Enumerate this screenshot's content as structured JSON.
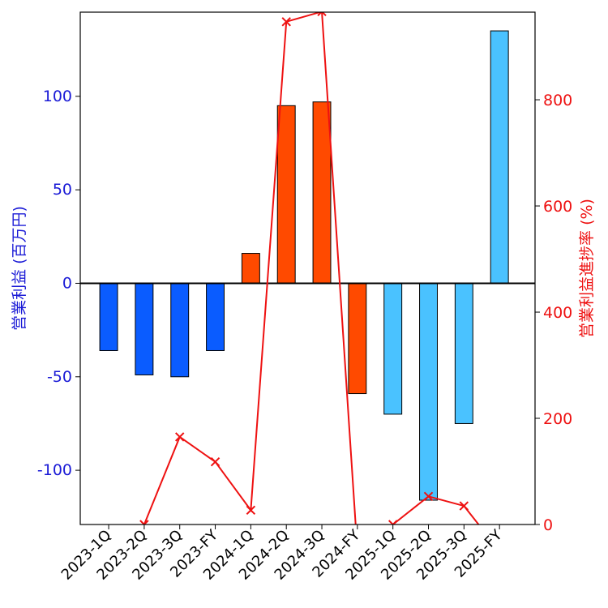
{
  "chart_data": {
    "type": "bar",
    "categories": [
      "2023-1Q",
      "2023-2Q",
      "2023-3Q",
      "2023-FY",
      "2024-1Q",
      "2024-2Q",
      "2024-3Q",
      "2024-FY",
      "2025-1Q",
      "2025-2Q",
      "2025-3Q",
      "2025-FY"
    ],
    "series": [
      {
        "axis": "left",
        "values": [
          -36,
          -49,
          -50,
          -36,
          16,
          95,
          97,
          -59,
          -70,
          -116,
          -75,
          135
        ],
        "colors": [
          "#0a5cff",
          "#0a5cff",
          "#0a5cff",
          "#0a5cff",
          "#ff4a00",
          "#ff4a00",
          "#ff4a00",
          "#ff4a00",
          "#4ac2ff",
          "#4ac2ff",
          "#4ac2ff",
          "#4ac2ff"
        ]
      },
      {
        "axis": "right",
        "type": "line",
        "color": "#ee1111",
        "marker": "x",
        "values": [
          -50,
          0,
          165,
          118,
          27,
          947,
          966,
          -50,
          0,
          53,
          35,
          -50
        ]
      }
    ],
    "ylabel": "営業利益 (百万円)",
    "y2label": "営業利益進捗率 (%)",
    "ylim": [
      -129,
      145
    ],
    "y2lim": [
      0,
      965
    ],
    "yticks": [
      -100,
      -50,
      0,
      50,
      100
    ],
    "y2ticks": [
      0,
      200,
      400,
      600,
      800
    ],
    "grid": false,
    "legend": "none"
  }
}
